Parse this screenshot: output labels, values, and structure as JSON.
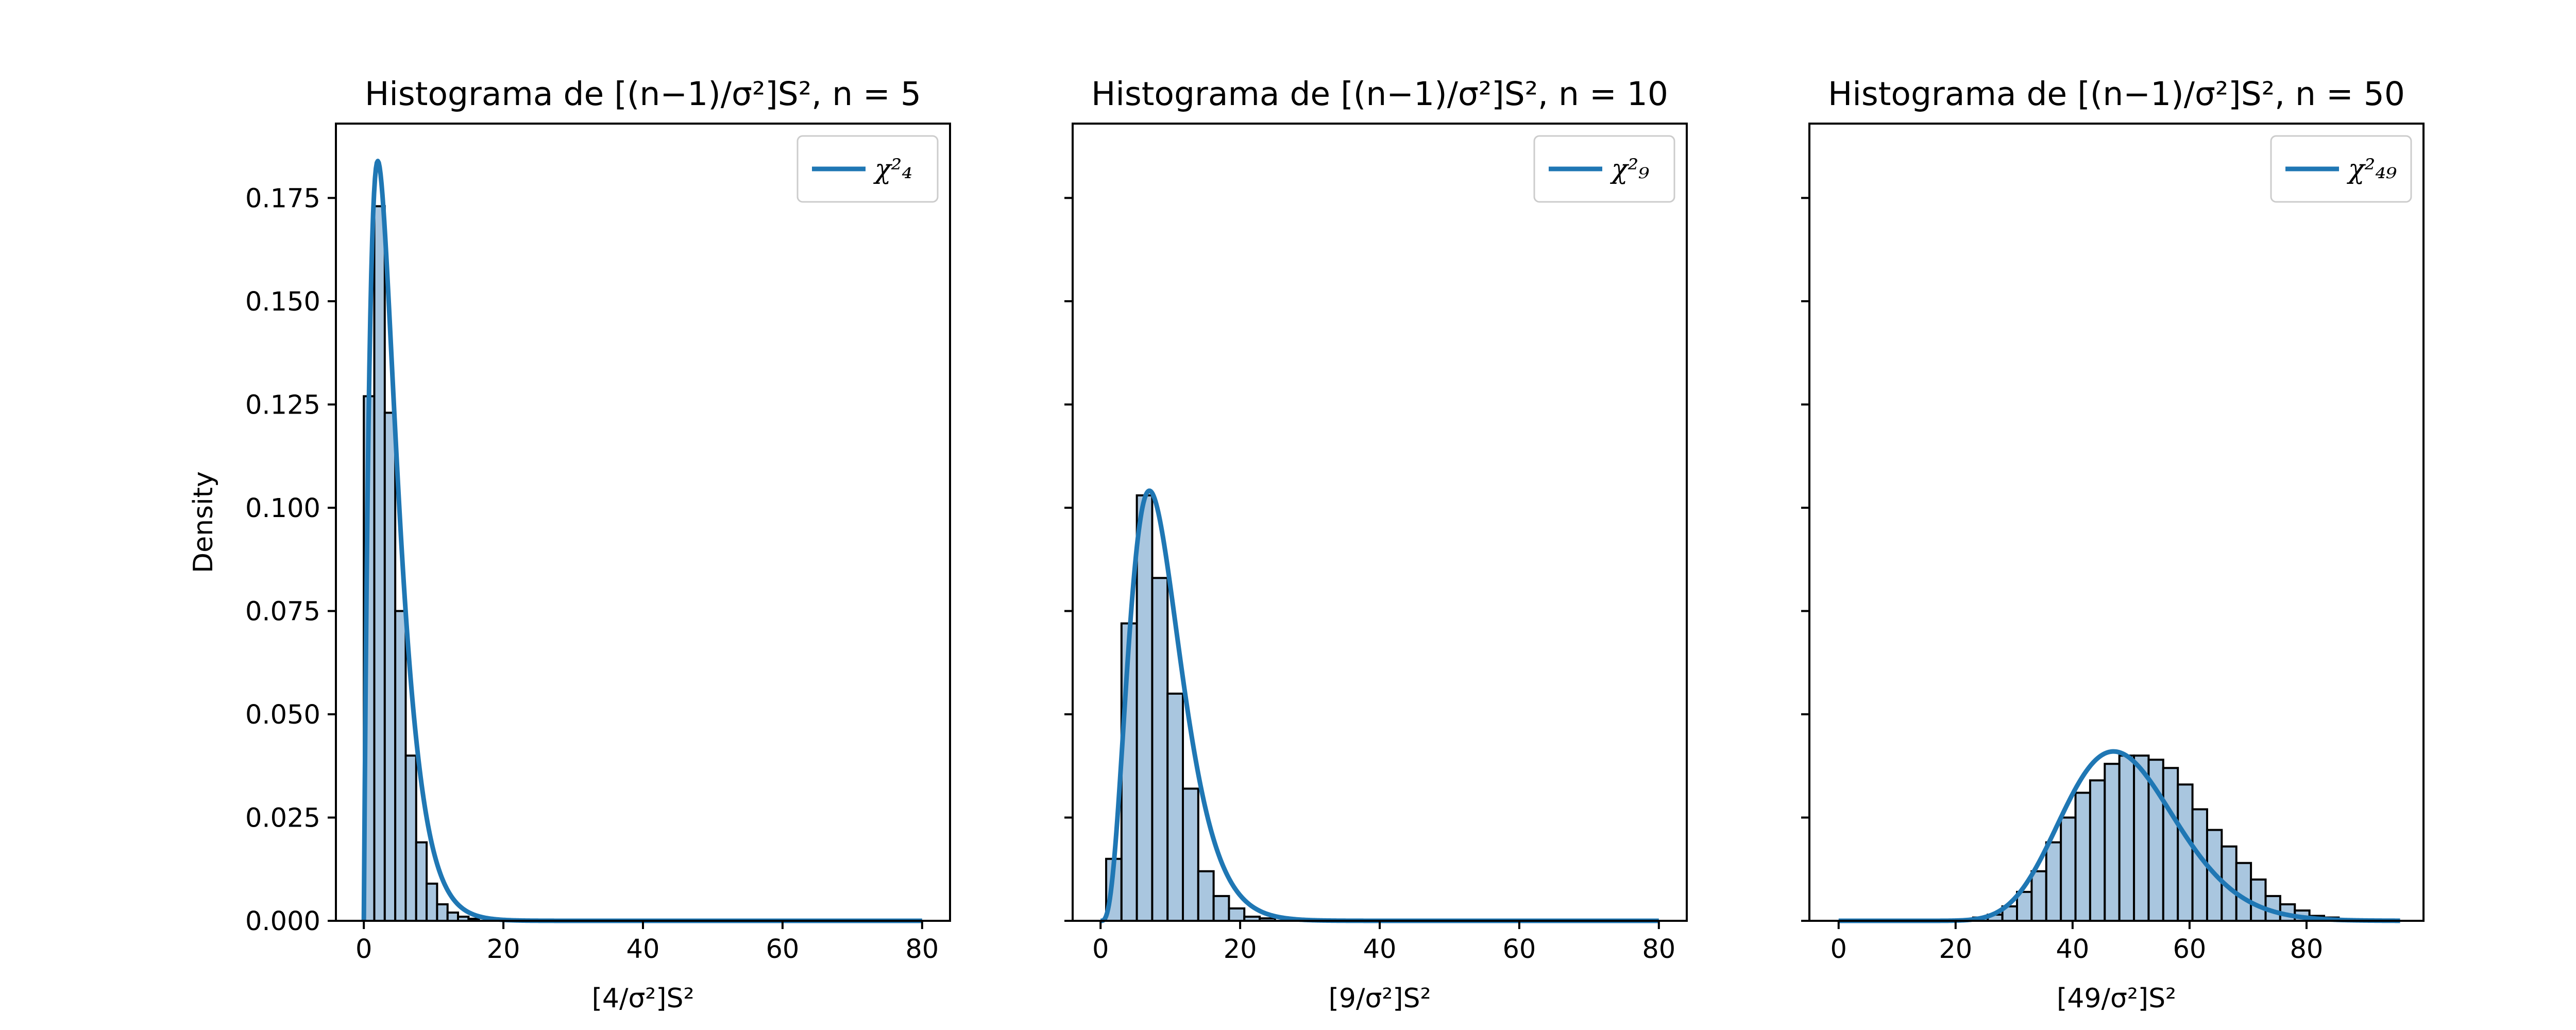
{
  "chart_data": {
    "type": "histogram",
    "ylabel": "Density",
    "ylim": [
      0,
      0.193
    ],
    "yticks": [
      "0.000",
      "0.025",
      "0.050",
      "0.075",
      "0.100",
      "0.125",
      "0.150",
      "0.175"
    ],
    "bar_fill": "#a9c6df",
    "bar_edge": "#000000",
    "curve_color": "#1f77b4",
    "panels": [
      {
        "title": "Histograma de  [(n−1)/σ²]S², n = 5",
        "xlabel": "[4/σ²]S²",
        "legend": "χ²₄",
        "legend_position": "top-right",
        "df": 4,
        "xlim": [
          -4,
          84
        ],
        "xticks": [
          0,
          20,
          40,
          60,
          80
        ],
        "bin_start": 0,
        "bin_width": 1.5,
        "bin_values": [
          0.127,
          0.173,
          0.123,
          0.075,
          0.04,
          0.019,
          0.009,
          0.004,
          0.002,
          0.001,
          0.0005
        ]
      },
      {
        "title": "Histograma de  [(n−1)/σ²]S², n = 10",
        "xlabel": "[9/σ²]S²",
        "legend": "χ²₉",
        "legend_position": "top-right",
        "df": 9,
        "xlim": [
          -4,
          84
        ],
        "xticks": [
          0,
          20,
          40,
          60,
          80
        ],
        "bin_start": 0.8,
        "bin_width": 2.2,
        "bin_values": [
          0.015,
          0.072,
          0.103,
          0.083,
          0.055,
          0.032,
          0.012,
          0.006,
          0.003,
          0.001,
          0.0006
        ]
      },
      {
        "title": "Histograma de  [(n−1)/σ²]S², n = 50",
        "xlabel": "[49/σ²]S²",
        "legend": "χ²₄₉",
        "legend_position": "top-right",
        "df": 49,
        "xlim": [
          -5,
          100
        ],
        "xticks": [
          0,
          20,
          40,
          60,
          80
        ],
        "bin_start": 20.5,
        "bin_width": 2.5,
        "bin_values": [
          0.0003,
          0.0008,
          0.0015,
          0.0035,
          0.007,
          0.012,
          0.019,
          0.025,
          0.031,
          0.034,
          0.038,
          0.04,
          0.04,
          0.039,
          0.037,
          0.033,
          0.027,
          0.022,
          0.018,
          0.014,
          0.01,
          0.006,
          0.004,
          0.0025,
          0.0012,
          0.0008
        ]
      }
    ]
  }
}
